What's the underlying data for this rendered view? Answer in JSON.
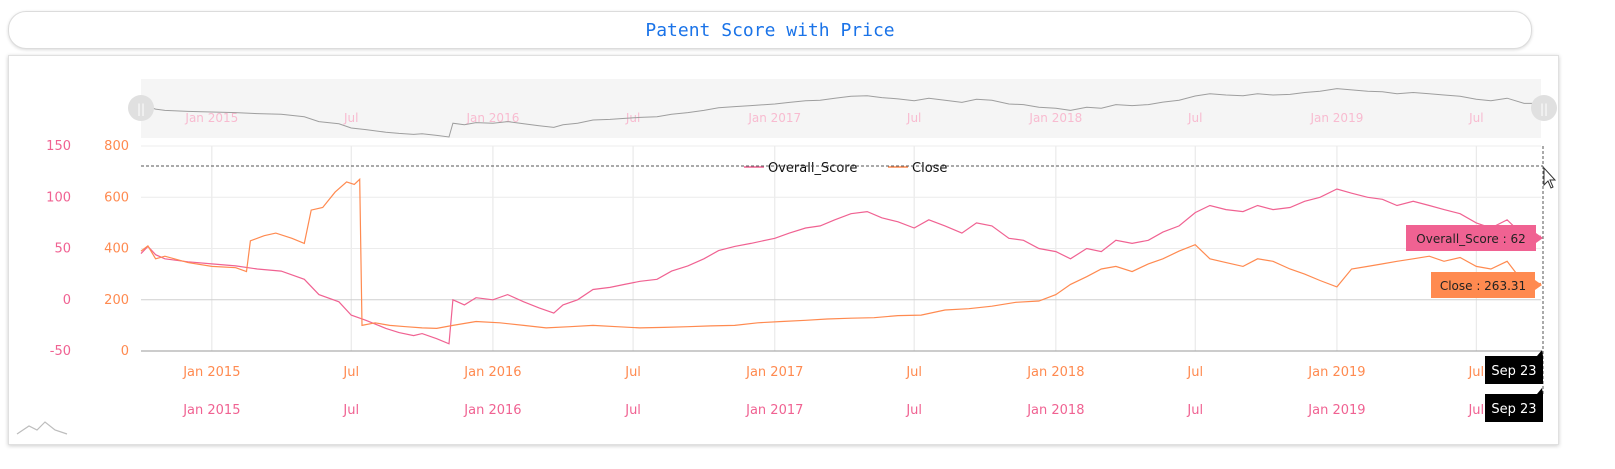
{
  "title": "Patent Score with Price",
  "chart_data": {
    "type": "line",
    "x_ticks": [
      "Jan 2015",
      "Jul",
      "Jan 2016",
      "Jul",
      "Jan 2017",
      "Jul",
      "Jan 2018",
      "Jul",
      "Jan 2019",
      "Jul"
    ],
    "x_range": [
      "2014-10-01",
      "2019-09-23"
    ],
    "y_left": {
      "ticks": [
        150,
        100,
        50,
        0,
        -50
      ],
      "range": [
        -50,
        150
      ],
      "color": "#f06292"
    },
    "y_right": {
      "ticks": [
        800,
        600,
        400,
        200,
        0
      ],
      "range": [
        0,
        800
      ],
      "color": "#ff8a50"
    },
    "legend_position": "top-center",
    "series": [
      {
        "name": "Overall_Score",
        "axis": "left",
        "color": "#f06292",
        "points": [
          [
            "2014-10-01",
            45
          ],
          [
            "2014-10-10",
            52
          ],
          [
            "2014-10-20",
            44
          ],
          [
            "2014-11-01",
            40
          ],
          [
            "2014-12-01",
            37
          ],
          [
            "2015-01-01",
            35
          ],
          [
            "2015-02-01",
            33
          ],
          [
            "2015-03-01",
            30
          ],
          [
            "2015-04-01",
            28
          ],
          [
            "2015-05-01",
            20
          ],
          [
            "2015-05-20",
            5
          ],
          [
            "2015-06-15",
            -2
          ],
          [
            "2015-07-01",
            -15
          ],
          [
            "2015-07-20",
            -20
          ],
          [
            "2015-08-15",
            -28
          ],
          [
            "2015-09-01",
            -32
          ],
          [
            "2015-09-20",
            -35
          ],
          [
            "2015-10-01",
            -33
          ],
          [
            "2015-10-20",
            -38
          ],
          [
            "2015-11-05",
            -43
          ],
          [
            "2015-11-10",
            0
          ],
          [
            "2015-11-25",
            -5
          ],
          [
            "2015-12-10",
            2
          ],
          [
            "2016-01-01",
            0
          ],
          [
            "2016-01-20",
            5
          ],
          [
            "2016-02-10",
            -2
          ],
          [
            "2016-03-01",
            -8
          ],
          [
            "2016-03-20",
            -13
          ],
          [
            "2016-04-01",
            -5
          ],
          [
            "2016-04-20",
            0
          ],
          [
            "2016-05-10",
            10
          ],
          [
            "2016-06-01",
            12
          ],
          [
            "2016-06-20",
            15
          ],
          [
            "2016-07-10",
            18
          ],
          [
            "2016-08-01",
            20
          ],
          [
            "2016-08-20",
            28
          ],
          [
            "2016-09-10",
            33
          ],
          [
            "2016-10-01",
            40
          ],
          [
            "2016-10-20",
            48
          ],
          [
            "2016-11-10",
            52
          ],
          [
            "2016-12-01",
            55
          ],
          [
            "2017-01-01",
            60
          ],
          [
            "2017-01-20",
            65
          ],
          [
            "2017-02-10",
            70
          ],
          [
            "2017-03-01",
            72
          ],
          [
            "2017-03-20",
            78
          ],
          [
            "2017-04-10",
            84
          ],
          [
            "2017-05-01",
            86
          ],
          [
            "2017-05-20",
            80
          ],
          [
            "2017-06-10",
            76
          ],
          [
            "2017-07-01",
            70
          ],
          [
            "2017-07-20",
            78
          ],
          [
            "2017-08-10",
            72
          ],
          [
            "2017-09-01",
            65
          ],
          [
            "2017-09-20",
            75
          ],
          [
            "2017-10-10",
            72
          ],
          [
            "2017-11-01",
            60
          ],
          [
            "2017-11-20",
            58
          ],
          [
            "2017-12-10",
            50
          ],
          [
            "2018-01-01",
            47
          ],
          [
            "2018-01-20",
            40
          ],
          [
            "2018-02-10",
            50
          ],
          [
            "2018-03-01",
            47
          ],
          [
            "2018-03-20",
            58
          ],
          [
            "2018-04-10",
            55
          ],
          [
            "2018-05-01",
            58
          ],
          [
            "2018-05-20",
            66
          ],
          [
            "2018-06-10",
            72
          ],
          [
            "2018-07-01",
            85
          ],
          [
            "2018-07-20",
            92
          ],
          [
            "2018-08-10",
            88
          ],
          [
            "2018-09-01",
            86
          ],
          [
            "2018-09-20",
            92
          ],
          [
            "2018-10-10",
            88
          ],
          [
            "2018-11-01",
            90
          ],
          [
            "2018-11-20",
            96
          ],
          [
            "2018-12-10",
            100
          ],
          [
            "2019-01-01",
            108
          ],
          [
            "2019-01-20",
            104
          ],
          [
            "2019-02-10",
            100
          ],
          [
            "2019-03-01",
            98
          ],
          [
            "2019-03-20",
            92
          ],
          [
            "2019-04-10",
            96
          ],
          [
            "2019-05-01",
            92
          ],
          [
            "2019-05-20",
            88
          ],
          [
            "2019-06-10",
            84
          ],
          [
            "2019-07-01",
            75
          ],
          [
            "2019-07-20",
            70
          ],
          [
            "2019-08-10",
            78
          ],
          [
            "2019-09-01",
            62
          ],
          [
            "2019-09-23",
            62
          ]
        ]
      },
      {
        "name": "Close",
        "axis": "right",
        "color": "#ff8a50",
        "points": [
          [
            "2014-10-01",
            390
          ],
          [
            "2014-10-10",
            410
          ],
          [
            "2014-10-20",
            360
          ],
          [
            "2014-11-01",
            370
          ],
          [
            "2014-12-01",
            345
          ],
          [
            "2015-01-01",
            330
          ],
          [
            "2015-02-01",
            325
          ],
          [
            "2015-02-15",
            310
          ],
          [
            "2015-02-20",
            430
          ],
          [
            "2015-03-10",
            450
          ],
          [
            "2015-03-25",
            460
          ],
          [
            "2015-04-15",
            440
          ],
          [
            "2015-05-01",
            420
          ],
          [
            "2015-05-10",
            550
          ],
          [
            "2015-05-25",
            560
          ],
          [
            "2015-06-10",
            620
          ],
          [
            "2015-06-25",
            660
          ],
          [
            "2015-07-05",
            650
          ],
          [
            "2015-07-12",
            670
          ],
          [
            "2015-07-15",
            100
          ],
          [
            "2015-08-01",
            110
          ],
          [
            "2015-08-20",
            100
          ],
          [
            "2015-09-10",
            95
          ],
          [
            "2015-10-01",
            90
          ],
          [
            "2015-10-20",
            88
          ],
          [
            "2015-11-10",
            100
          ],
          [
            "2015-12-10",
            115
          ],
          [
            "2016-01-10",
            110
          ],
          [
            "2016-02-10",
            100
          ],
          [
            "2016-03-10",
            90
          ],
          [
            "2016-04-10",
            95
          ],
          [
            "2016-05-10",
            100
          ],
          [
            "2016-06-10",
            95
          ],
          [
            "2016-07-10",
            90
          ],
          [
            "2016-08-10",
            92
          ],
          [
            "2016-09-10",
            95
          ],
          [
            "2016-10-10",
            98
          ],
          [
            "2016-11-10",
            100
          ],
          [
            "2016-12-10",
            110
          ],
          [
            "2017-01-10",
            115
          ],
          [
            "2017-02-10",
            120
          ],
          [
            "2017-03-10",
            125
          ],
          [
            "2017-04-10",
            128
          ],
          [
            "2017-05-10",
            130
          ],
          [
            "2017-06-10",
            138
          ],
          [
            "2017-07-10",
            140
          ],
          [
            "2017-08-10",
            160
          ],
          [
            "2017-09-10",
            165
          ],
          [
            "2017-10-10",
            175
          ],
          [
            "2017-11-10",
            190
          ],
          [
            "2017-12-10",
            195
          ],
          [
            "2018-01-01",
            220
          ],
          [
            "2018-01-20",
            260
          ],
          [
            "2018-02-10",
            290
          ],
          [
            "2018-03-01",
            320
          ],
          [
            "2018-03-20",
            330
          ],
          [
            "2018-04-10",
            310
          ],
          [
            "2018-05-01",
            340
          ],
          [
            "2018-05-20",
            360
          ],
          [
            "2018-06-10",
            390
          ],
          [
            "2018-07-01",
            415
          ],
          [
            "2018-07-20",
            360
          ],
          [
            "2018-08-10",
            345
          ],
          [
            "2018-09-01",
            330
          ],
          [
            "2018-09-20",
            360
          ],
          [
            "2018-10-10",
            350
          ],
          [
            "2018-11-01",
            320
          ],
          [
            "2018-11-20",
            300
          ],
          [
            "2018-12-10",
            275
          ],
          [
            "2019-01-01",
            250
          ],
          [
            "2019-01-20",
            320
          ],
          [
            "2019-02-10",
            330
          ],
          [
            "2019-03-01",
            340
          ],
          [
            "2019-03-20",
            350
          ],
          [
            "2019-04-10",
            360
          ],
          [
            "2019-05-01",
            370
          ],
          [
            "2019-05-20",
            350
          ],
          [
            "2019-06-10",
            365
          ],
          [
            "2019-07-01",
            330
          ],
          [
            "2019-07-20",
            320
          ],
          [
            "2019-08-10",
            350
          ],
          [
            "2019-09-01",
            263.31
          ],
          [
            "2019-09-23",
            263.31
          ]
        ]
      }
    ],
    "tooltips": [
      {
        "series": "Overall_Score",
        "label": "Overall_Score : 62",
        "color": "#f06292"
      },
      {
        "series": "Close",
        "label": "Close : 263.31",
        "color": "#ff8a50"
      }
    ],
    "cursor_date_label": "Sep 23",
    "scrollbar": true,
    "grid": true
  }
}
